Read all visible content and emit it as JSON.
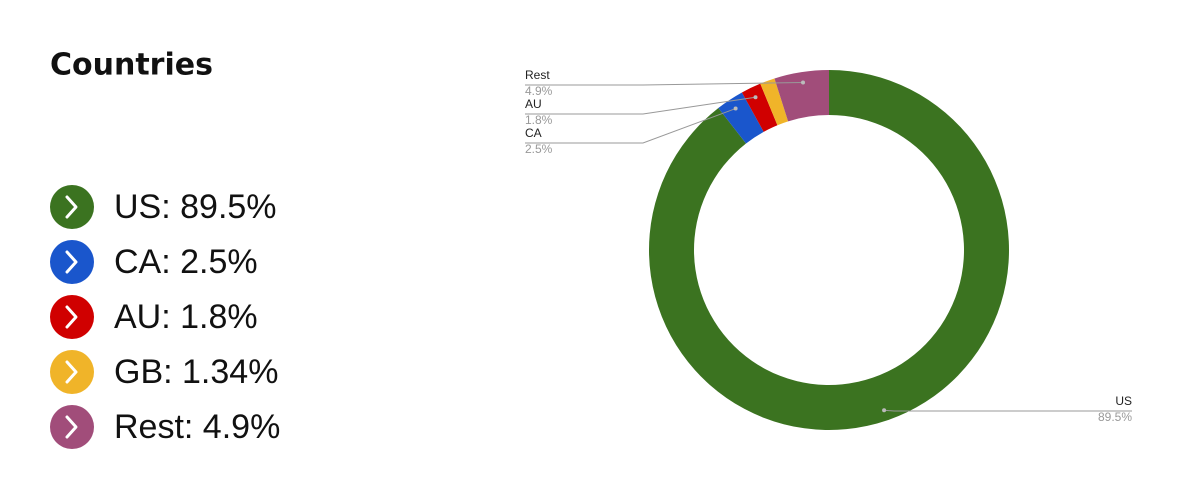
{
  "chart_data": {
    "type": "donut",
    "title": "Countries",
    "categories": [
      "US",
      "CA",
      "AU",
      null,
      "Rest"
    ],
    "values": [
      89.5,
      2.5,
      1.8,
      1.34,
      4.9
    ],
    "value_labels": [
      "89.5%",
      "2.5%",
      "1.8%",
      null,
      "4.9%"
    ],
    "legend_labels": [
      "US: 89.5%",
      "CA: 2.5%",
      "AU: 1.8%",
      "GB: 1.34%",
      "Rest: 4.9%"
    ],
    "colors": [
      "#3b7320",
      "#1a56cc",
      "#d00000",
      "#f0b429",
      "#a14d7a"
    ]
  }
}
